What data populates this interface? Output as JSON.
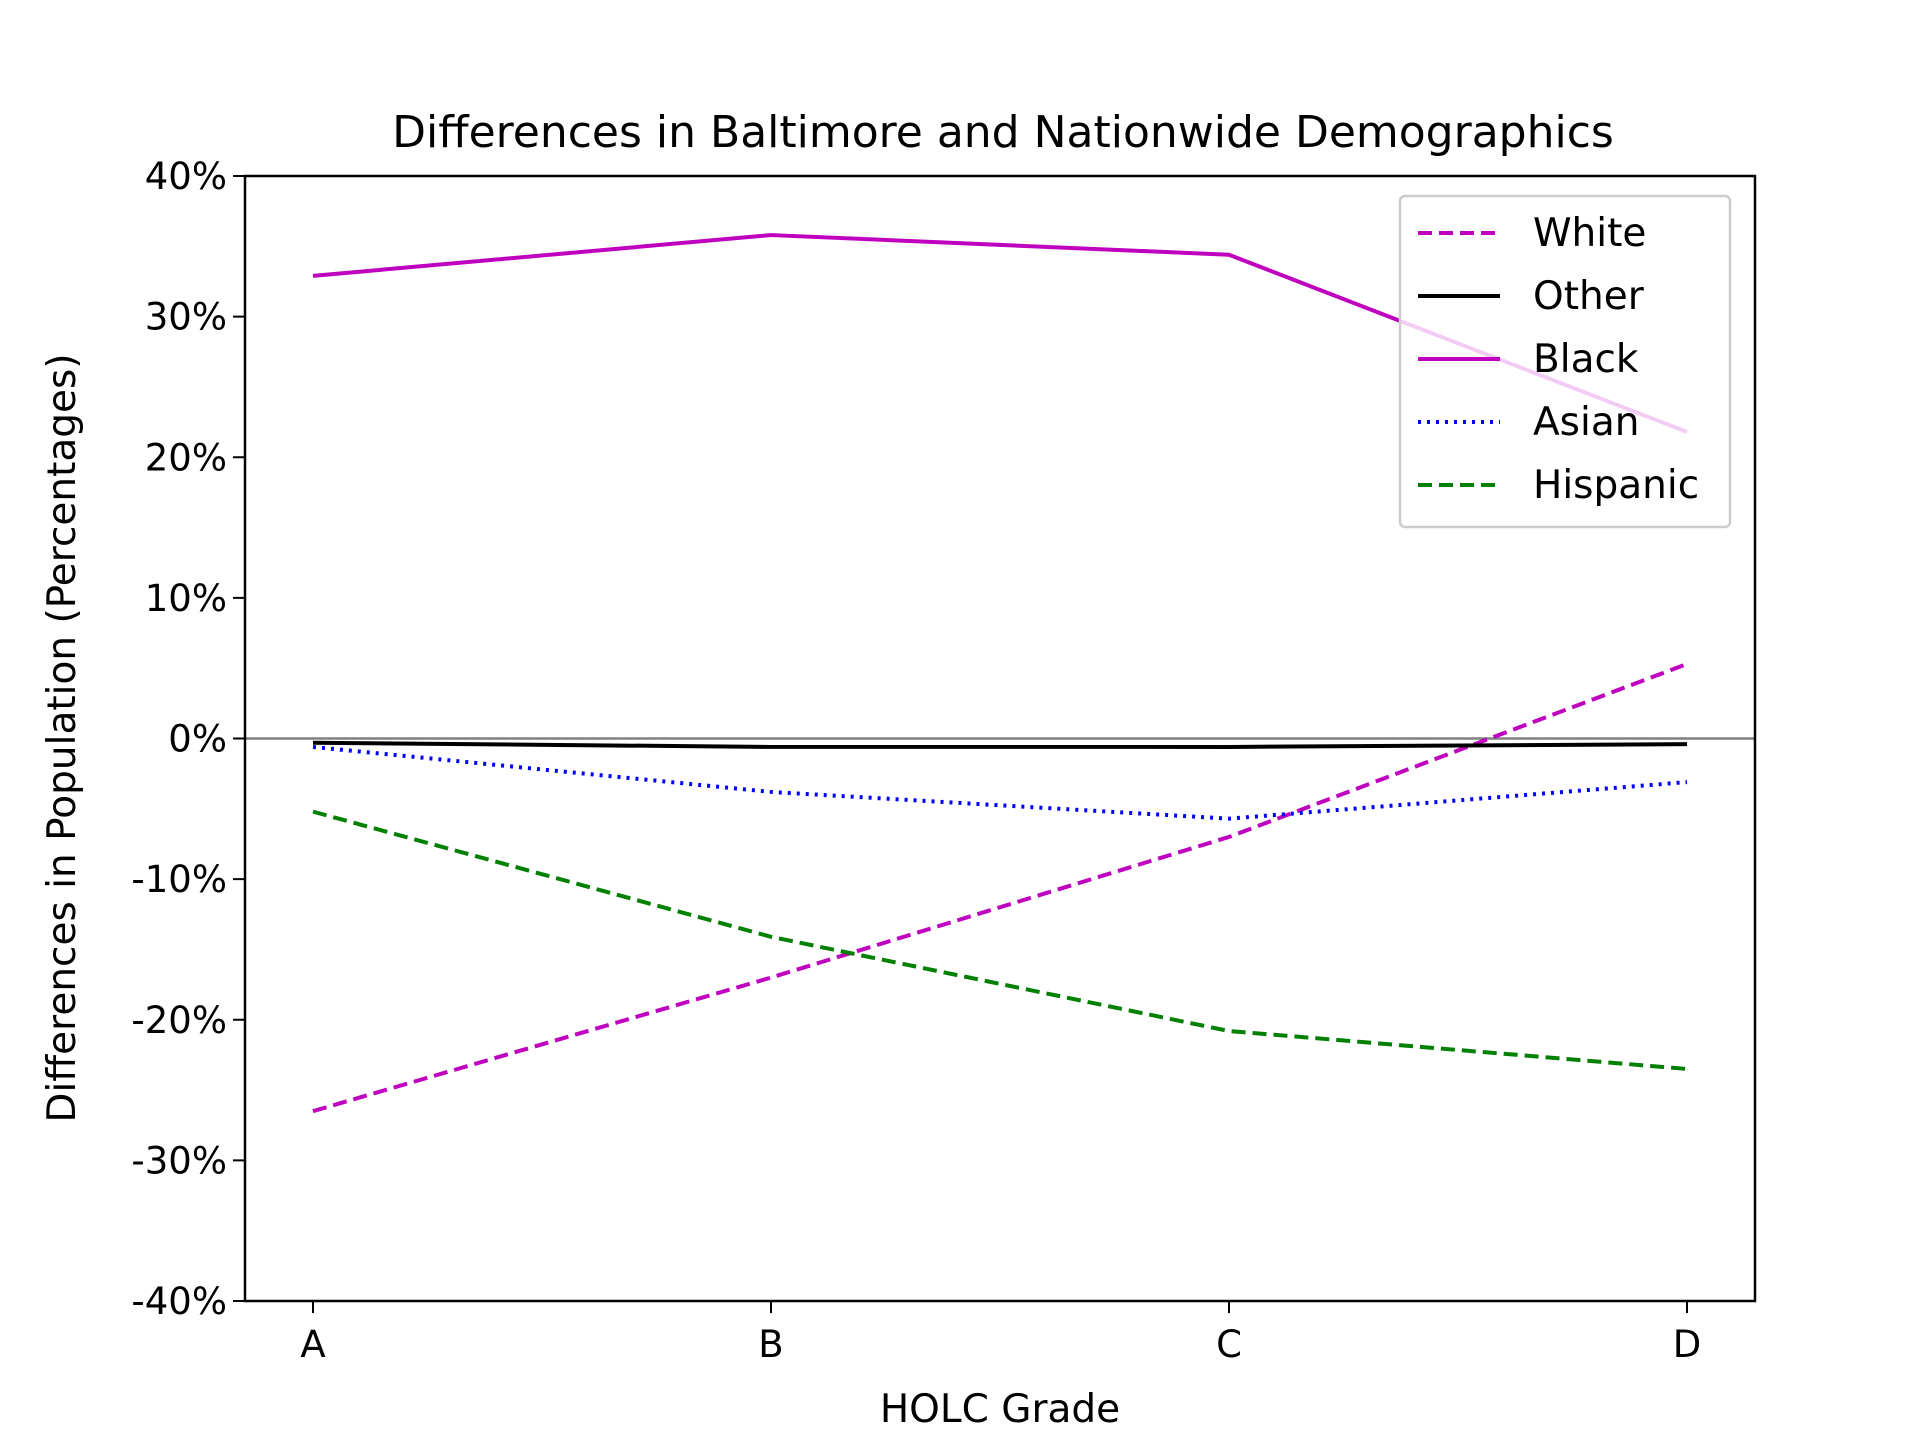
{
  "chart_data": {
    "type": "line",
    "title": "Differences in Baltimore and Nationwide Demographics",
    "xlabel": "HOLC Grade",
    "ylabel": "Differences in Population (Percentages)",
    "categories": [
      "A",
      "B",
      "C",
      "D"
    ],
    "ylim": [
      -40,
      40
    ],
    "y_ticks": [
      40,
      30,
      20,
      10,
      0,
      -10,
      -20,
      -30,
      -40
    ],
    "y_tick_labels": [
      "40%",
      "30%",
      "20%",
      "10%",
      "0%",
      "-10%",
      "-20%",
      "-30%",
      "-40%"
    ],
    "reference_line": {
      "y": 0,
      "color": "#808080"
    },
    "grid": false,
    "legend_position": "top-right",
    "series": [
      {
        "name": "White",
        "values": [
          -26.5,
          -17.0,
          -7.0,
          5.3
        ],
        "color": "#bf00bf",
        "style": "dashed"
      },
      {
        "name": "Other",
        "values": [
          -0.3,
          -0.6,
          -0.6,
          -0.4
        ],
        "color": "#000000",
        "style": "solid"
      },
      {
        "name": "Black",
        "values": [
          32.9,
          35.8,
          34.4,
          21.8
        ],
        "color": "#bf00bf",
        "style": "solid"
      },
      {
        "name": "Asian",
        "values": [
          -0.6,
          -3.8,
          -5.7,
          -3.1
        ],
        "color": "#0000ff",
        "style": "dotted"
      },
      {
        "name": "Hispanic",
        "values": [
          -5.2,
          -14.1,
          -20.8,
          -23.5
        ],
        "color": "#008000",
        "style": "dashed"
      }
    ]
  }
}
